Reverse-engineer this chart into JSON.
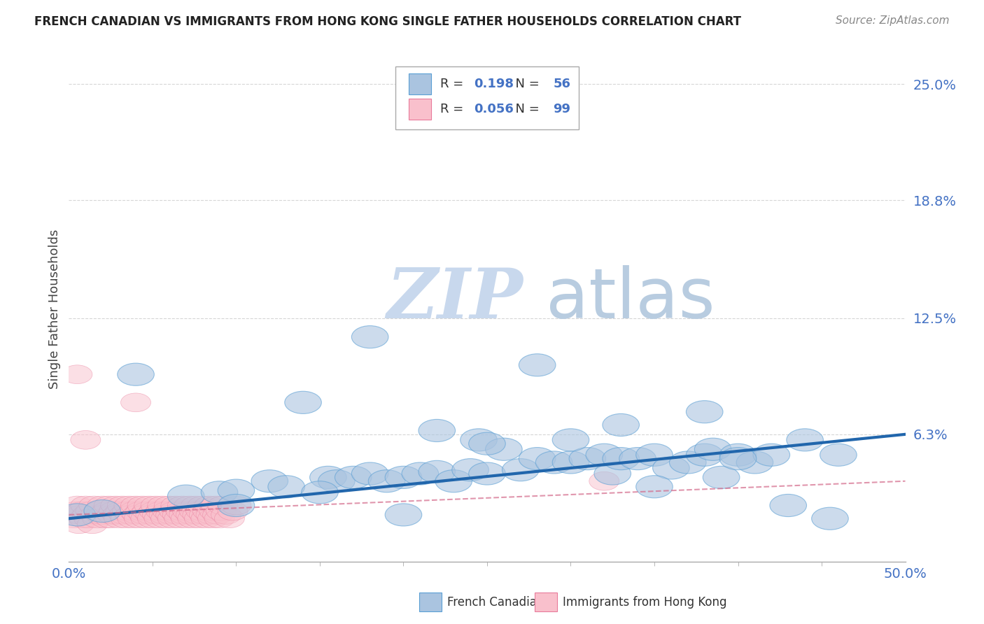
{
  "title": "FRENCH CANADIAN VS IMMIGRANTS FROM HONG KONG SINGLE FATHER HOUSEHOLDS CORRELATION CHART",
  "source": "Source: ZipAtlas.com",
  "ylabel": "Single Father Households",
  "xmin": 0.0,
  "xmax": 0.5,
  "ymin": -0.005,
  "ymax": 0.265,
  "yticks": [
    0.063,
    0.125,
    0.188,
    0.25
  ],
  "ytick_labels": [
    "6.3%",
    "12.5%",
    "18.8%",
    "25.0%"
  ],
  "xticks": [
    0.0,
    0.5
  ],
  "xtick_labels": [
    "0.0%",
    "50.0%"
  ],
  "blue_R": 0.198,
  "blue_N": 56,
  "pink_R": 0.056,
  "pink_N": 99,
  "blue_color": "#aac4e0",
  "blue_edge_color": "#5a9fd4",
  "blue_line_color": "#2166ac",
  "pink_color": "#f9c0cc",
  "pink_edge_color": "#e87a9a",
  "pink_line_color": "#d46a8a",
  "blue_line_x0": 0.0,
  "blue_line_x1": 0.5,
  "blue_line_y0": 0.018,
  "blue_line_y1": 0.063,
  "pink_line_x0": 0.0,
  "pink_line_x1": 0.5,
  "pink_line_y0": 0.02,
  "pink_line_y1": 0.038,
  "blue_scatter_x": [
    0.005,
    0.02,
    0.04,
    0.07,
    0.09,
    0.1,
    0.12,
    0.13,
    0.14,
    0.155,
    0.16,
    0.17,
    0.18,
    0.19,
    0.2,
    0.21,
    0.22,
    0.23,
    0.24,
    0.245,
    0.25,
    0.26,
    0.27,
    0.28,
    0.29,
    0.3,
    0.31,
    0.32,
    0.325,
    0.33,
    0.34,
    0.35,
    0.36,
    0.37,
    0.38,
    0.385,
    0.39,
    0.4,
    0.41,
    0.42,
    0.43,
    0.44,
    0.455,
    0.46,
    0.3,
    0.15,
    0.25,
    0.35,
    0.1,
    0.2,
    0.4,
    0.38,
    0.22,
    0.28,
    0.18,
    0.33
  ],
  "blue_scatter_y": [
    0.02,
    0.022,
    0.095,
    0.03,
    0.032,
    0.033,
    0.038,
    0.035,
    0.08,
    0.04,
    0.038,
    0.04,
    0.042,
    0.038,
    0.04,
    0.042,
    0.043,
    0.038,
    0.044,
    0.06,
    0.042,
    0.055,
    0.044,
    0.05,
    0.048,
    0.048,
    0.05,
    0.052,
    0.042,
    0.05,
    0.05,
    0.052,
    0.045,
    0.048,
    0.052,
    0.055,
    0.04,
    0.052,
    0.048,
    0.052,
    0.025,
    0.06,
    0.018,
    0.052,
    0.06,
    0.032,
    0.058,
    0.035,
    0.025,
    0.02,
    0.05,
    0.075,
    0.065,
    0.1,
    0.115,
    0.068
  ],
  "pink_scatter_x": [
    0.002,
    0.003,
    0.004,
    0.005,
    0.006,
    0.007,
    0.008,
    0.009,
    0.01,
    0.011,
    0.012,
    0.013,
    0.014,
    0.015,
    0.016,
    0.017,
    0.018,
    0.019,
    0.02,
    0.021,
    0.022,
    0.023,
    0.024,
    0.025,
    0.026,
    0.027,
    0.028,
    0.029,
    0.03,
    0.031,
    0.032,
    0.033,
    0.034,
    0.035,
    0.036,
    0.037,
    0.038,
    0.039,
    0.04,
    0.041,
    0.042,
    0.043,
    0.044,
    0.045,
    0.046,
    0.047,
    0.048,
    0.049,
    0.05,
    0.051,
    0.052,
    0.053,
    0.054,
    0.055,
    0.056,
    0.057,
    0.058,
    0.059,
    0.06,
    0.061,
    0.062,
    0.063,
    0.064,
    0.065,
    0.066,
    0.067,
    0.068,
    0.069,
    0.07,
    0.071,
    0.072,
    0.073,
    0.074,
    0.075,
    0.076,
    0.077,
    0.078,
    0.079,
    0.08,
    0.081,
    0.082,
    0.083,
    0.084,
    0.085,
    0.086,
    0.087,
    0.088,
    0.089,
    0.09,
    0.091,
    0.092,
    0.094,
    0.096,
    0.098,
    0.1,
    0.04,
    0.32,
    0.005,
    0.01
  ],
  "pink_scatter_y": [
    0.02,
    0.018,
    0.022,
    0.025,
    0.015,
    0.02,
    0.022,
    0.018,
    0.025,
    0.02,
    0.018,
    0.022,
    0.015,
    0.025,
    0.02,
    0.018,
    0.022,
    0.02,
    0.025,
    0.02,
    0.018,
    0.022,
    0.025,
    0.018,
    0.02,
    0.022,
    0.025,
    0.02,
    0.018,
    0.022,
    0.025,
    0.02,
    0.018,
    0.022,
    0.025,
    0.02,
    0.018,
    0.022,
    0.025,
    0.02,
    0.018,
    0.022,
    0.025,
    0.02,
    0.018,
    0.022,
    0.025,
    0.02,
    0.018,
    0.022,
    0.025,
    0.02,
    0.018,
    0.022,
    0.025,
    0.02,
    0.018,
    0.022,
    0.025,
    0.02,
    0.018,
    0.022,
    0.025,
    0.02,
    0.018,
    0.022,
    0.025,
    0.02,
    0.018,
    0.022,
    0.025,
    0.02,
    0.018,
    0.022,
    0.025,
    0.02,
    0.018,
    0.022,
    0.025,
    0.02,
    0.018,
    0.022,
    0.025,
    0.02,
    0.018,
    0.022,
    0.025,
    0.02,
    0.018,
    0.022,
    0.025,
    0.02,
    0.018,
    0.022,
    0.025,
    0.08,
    0.038,
    0.095,
    0.06
  ],
  "watermark_zip": "ZIP",
  "watermark_atlas": "atlas",
  "watermark_color_zip": "#c8d8ed",
  "watermark_color_atlas": "#b8cce0",
  "background_color": "#ffffff",
  "grid_color": "#cccccc",
  "tick_color": "#4472c4",
  "legend_label_1": "French Canadians",
  "legend_label_2": "Immigrants from Hong Kong"
}
